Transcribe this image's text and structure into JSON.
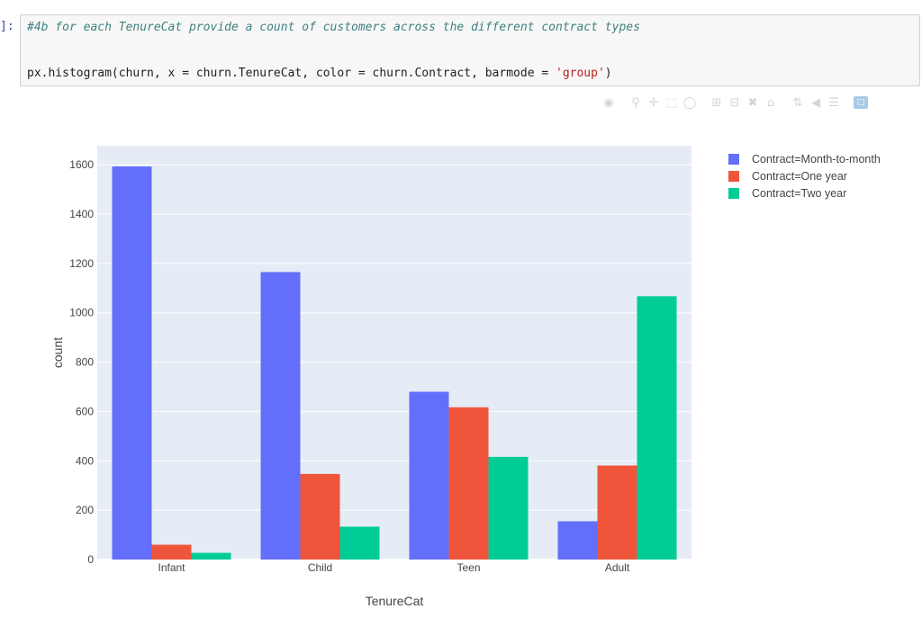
{
  "cell": {
    "prompt": "]:",
    "comment": "#4b for each TenureCat provide a count of customers across the different contract types",
    "code_prefix": "px.histogram(churn, x = churn.TenureCat, color = churn.Contract, barmode = ",
    "code_string": "'group'",
    "code_suffix": ")"
  },
  "modebar": {
    "icons": [
      "camera-icon",
      "zoom-icon",
      "pan-icon",
      "box-select-icon",
      "lasso-select-icon",
      "zoom-in-icon",
      "zoom-out-icon",
      "autoscale-icon",
      "reset-axes-icon",
      "spike-lines-icon",
      "hover-closest-icon",
      "hover-compare-icon",
      "plotly-logo-icon"
    ]
  },
  "chart_data": {
    "type": "bar",
    "barmode": "group",
    "categories": [
      "Infant",
      "Child",
      "Teen",
      "Adult"
    ],
    "series": [
      {
        "name": "Contract=Month-to-month",
        "color": "#636efa",
        "values": [
          1593,
          1165,
          680,
          155
        ]
      },
      {
        "name": "Contract=One year",
        "color": "#ef553b",
        "values": [
          60,
          347,
          617,
          381
        ]
      },
      {
        "name": "Contract=Two year",
        "color": "#00cc96",
        "values": [
          27,
          133,
          416,
          1067
        ]
      }
    ],
    "xlabel": "TenureCat",
    "ylabel": "count",
    "yticks": [
      0,
      200,
      400,
      600,
      800,
      1000,
      1200,
      1400,
      1600
    ],
    "ylim": [
      0,
      1677
    ],
    "grid": true,
    "plot_bgcolor": "#e5ecf6",
    "legend_position": "top-right"
  }
}
